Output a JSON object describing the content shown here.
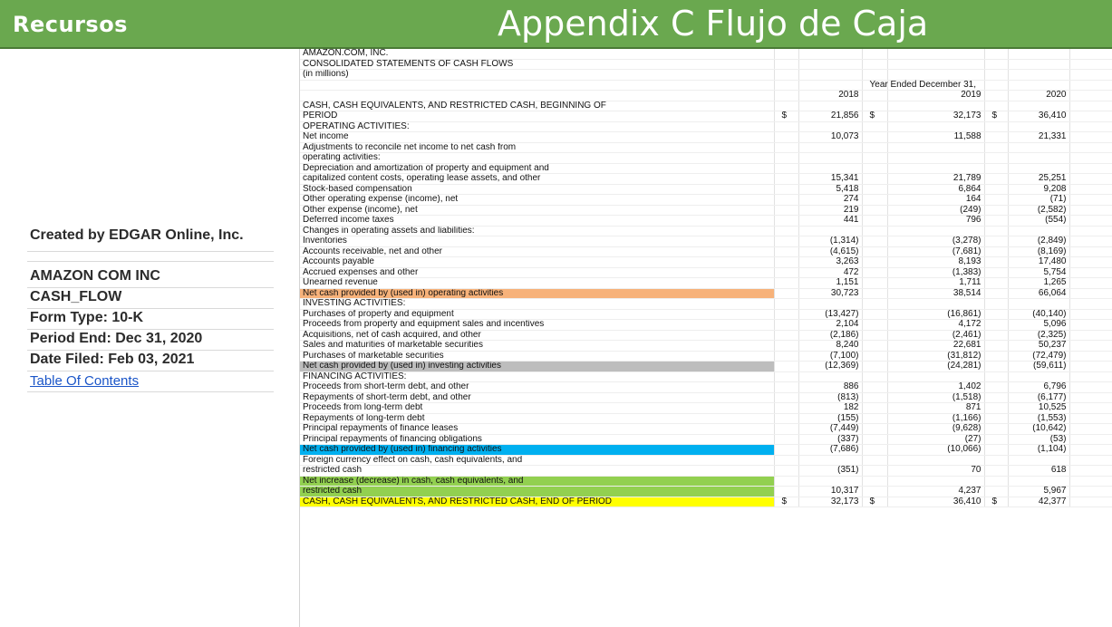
{
  "header": {
    "brand": "Recursos",
    "title": "Appendix C Flujo de Caja"
  },
  "sidebar": {
    "created_by": "Created by EDGAR Online, Inc.",
    "company": "AMAZON COM INC",
    "statement": "CASH_FLOW",
    "form_type": "Form Type: 10-K",
    "period_end": "Period End: Dec 31, 2020",
    "date_filed": "Date Filed: Feb 03, 2021",
    "toc_link": "Table Of Contents"
  },
  "sheet": {
    "rows": [
      {
        "label": "AMAZON.COM, INC.",
        "c1": "",
        "v1": "",
        "c2": "",
        "v2": "",
        "c3": "",
        "v3": ""
      },
      {
        "label": "CONSOLIDATED STATEMENTS OF CASH FLOWS",
        "c1": "",
        "v1": "",
        "c2": "",
        "v2": "",
        "c3": "",
        "v3": ""
      },
      {
        "label": "(in millions)",
        "c1": "",
        "v1": "",
        "c2": "",
        "v2": "",
        "c3": "",
        "v3": ""
      },
      {
        "label": "",
        "c1": "",
        "v1": "",
        "c2": "Year Ended December 31,",
        "v2": "",
        "c3": "",
        "v3": ""
      },
      {
        "label": "",
        "c1": "",
        "v1": "2018",
        "c2": "",
        "v2": "2019",
        "c3": "",
        "v3": "2020"
      },
      {
        "label": "CASH, CASH EQUIVALENTS, AND RESTRICTED CASH, BEGINNING OF",
        "c1": "",
        "v1": "",
        "c2": "",
        "v2": "",
        "c3": "",
        "v3": ""
      },
      {
        "label": "PERIOD",
        "c1": "$",
        "v1": "21,856",
        "c2": "$",
        "v2": "32,173",
        "c3": "$",
        "v3": "36,410"
      },
      {
        "label": "OPERATING ACTIVITIES:",
        "c1": "",
        "v1": "",
        "c2": "",
        "v2": "",
        "c3": "",
        "v3": ""
      },
      {
        "label": "Net income",
        "c1": "",
        "v1": "10,073",
        "c2": "",
        "v2": "11,588",
        "c3": "",
        "v3": "21,331"
      },
      {
        "label": "Adjustments to reconcile net income to net cash from",
        "c1": "",
        "v1": "",
        "c2": "",
        "v2": "",
        "c3": "",
        "v3": ""
      },
      {
        "label": "operating activities:",
        "c1": "",
        "v1": "",
        "c2": "",
        "v2": "",
        "c3": "",
        "v3": ""
      },
      {
        "label": "Depreciation and amortization of property and equipment and",
        "c1": "",
        "v1": "",
        "c2": "",
        "v2": "",
        "c3": "",
        "v3": ""
      },
      {
        "label": "capitalized content costs, operating lease assets, and other",
        "c1": "",
        "v1": "15,341",
        "c2": "",
        "v2": "21,789",
        "c3": "",
        "v3": "25,251"
      },
      {
        "label": "Stock-based compensation",
        "c1": "",
        "v1": "5,418",
        "c2": "",
        "v2": "6,864",
        "c3": "",
        "v3": "9,208"
      },
      {
        "label": "Other operating expense (income), net",
        "c1": "",
        "v1": "274",
        "c2": "",
        "v2": "164",
        "c3": "",
        "v3": "(71)"
      },
      {
        "label": "Other expense (income), net",
        "c1": "",
        "v1": "219",
        "c2": "",
        "v2": "(249)",
        "c3": "",
        "v3": "(2,582)"
      },
      {
        "label": "Deferred income taxes",
        "c1": "",
        "v1": "441",
        "c2": "",
        "v2": "796",
        "c3": "",
        "v3": "(554)"
      },
      {
        "label": "Changes in operating assets and liabilities:",
        "c1": "",
        "v1": "",
        "c2": "",
        "v2": "",
        "c3": "",
        "v3": ""
      },
      {
        "label": "Inventories",
        "c1": "",
        "v1": "(1,314)",
        "c2": "",
        "v2": "(3,278)",
        "c3": "",
        "v3": "(2,849)"
      },
      {
        "label": "Accounts receivable, net and other",
        "c1": "",
        "v1": "(4,615)",
        "c2": "",
        "v2": "(7,681)",
        "c3": "",
        "v3": "(8,169)"
      },
      {
        "label": "Accounts payable",
        "c1": "",
        "v1": "3,263",
        "c2": "",
        "v2": "8,193",
        "c3": "",
        "v3": "17,480"
      },
      {
        "label": "Accrued expenses and other",
        "c1": "",
        "v1": "472",
        "c2": "",
        "v2": "(1,383)",
        "c3": "",
        "v3": "5,754"
      },
      {
        "label": "Unearned revenue",
        "c1": "",
        "v1": "1,151",
        "c2": "",
        "v2": "1,711",
        "c3": "",
        "v3": "1,265"
      },
      {
        "label": "Net cash provided by (used in) operating activities",
        "c1": "",
        "v1": "30,723",
        "c2": "",
        "v2": "38,514",
        "c3": "",
        "v3": "66,064",
        "highlight": "orange"
      },
      {
        "label": "INVESTING ACTIVITIES:",
        "c1": "",
        "v1": "",
        "c2": "",
        "v2": "",
        "c3": "",
        "v3": ""
      },
      {
        "label": "Purchases of property and equipment",
        "c1": "",
        "v1": "(13,427)",
        "c2": "",
        "v2": "(16,861)",
        "c3": "",
        "v3": "(40,140)"
      },
      {
        "label": "Proceeds from property and equipment sales and incentives",
        "c1": "",
        "v1": "2,104",
        "c2": "",
        "v2": "4,172",
        "c3": "",
        "v3": "5,096"
      },
      {
        "label": "Acquisitions, net of cash acquired, and other",
        "c1": "",
        "v1": "(2,186)",
        "c2": "",
        "v2": "(2,461)",
        "c3": "",
        "v3": "(2,325)"
      },
      {
        "label": "Sales and maturities of marketable securities",
        "c1": "",
        "v1": "8,240",
        "c2": "",
        "v2": "22,681",
        "c3": "",
        "v3": "50,237"
      },
      {
        "label": "Purchases of marketable securities",
        "c1": "",
        "v1": "(7,100)",
        "c2": "",
        "v2": "(31,812)",
        "c3": "",
        "v3": "(72,479)"
      },
      {
        "label": "Net cash provided by (used in) investing activities",
        "c1": "",
        "v1": "(12,369)",
        "c2": "",
        "v2": "(24,281)",
        "c3": "",
        "v3": "(59,611)",
        "highlight": "gray"
      },
      {
        "label": "FINANCING ACTIVITIES:",
        "c1": "",
        "v1": "",
        "c2": "",
        "v2": "",
        "c3": "",
        "v3": ""
      },
      {
        "label": "Proceeds from short-term debt, and other",
        "c1": "",
        "v1": "886",
        "c2": "",
        "v2": "1,402",
        "c3": "",
        "v3": "6,796"
      },
      {
        "label": "Repayments of short-term debt, and other",
        "c1": "",
        "v1": "(813)",
        "c2": "",
        "v2": "(1,518)",
        "c3": "",
        "v3": "(6,177)"
      },
      {
        "label": "Proceeds from long-term debt",
        "c1": "",
        "v1": "182",
        "c2": "",
        "v2": "871",
        "c3": "",
        "v3": "10,525"
      },
      {
        "label": "Repayments of long-term debt",
        "c1": "",
        "v1": "(155)",
        "c2": "",
        "v2": "(1,166)",
        "c3": "",
        "v3": "(1,553)"
      },
      {
        "label": "Principal repayments of finance leases",
        "c1": "",
        "v1": "(7,449)",
        "c2": "",
        "v2": "(9,628)",
        "c3": "",
        "v3": "(10,642)"
      },
      {
        "label": "Principal repayments of financing obligations",
        "c1": "",
        "v1": "(337)",
        "c2": "",
        "v2": "(27)",
        "c3": "",
        "v3": "(53)"
      },
      {
        "label": "Net cash provided by (used in) financing activities",
        "c1": "",
        "v1": "(7,686)",
        "c2": "",
        "v2": "(10,066)",
        "c3": "",
        "v3": "(1,104)",
        "highlight": "blue"
      },
      {
        "label": "Foreign currency effect on cash, cash equivalents, and",
        "c1": "",
        "v1": "",
        "c2": "",
        "v2": "",
        "c3": "",
        "v3": ""
      },
      {
        "label": "restricted cash",
        "c1": "",
        "v1": "(351)",
        "c2": "",
        "v2": "70",
        "c3": "",
        "v3": "618"
      },
      {
        "label": "Net increase (decrease) in cash, cash equivalents, and",
        "c1": "",
        "v1": "",
        "c2": "",
        "v2": "",
        "c3": "",
        "v3": "",
        "highlight": "green"
      },
      {
        "label": "restricted cash",
        "c1": "",
        "v1": "10,317",
        "c2": "",
        "v2": "4,237",
        "c3": "",
        "v3": "5,967",
        "highlight": "green"
      },
      {
        "label": "CASH, CASH EQUIVALENTS, AND RESTRICTED CASH, END OF PERIOD",
        "c1": "$",
        "v1": "32,173",
        "c2": "$",
        "v2": "36,410",
        "c3": "$",
        "v3": "42,377",
        "highlight": "yellow"
      }
    ]
  }
}
